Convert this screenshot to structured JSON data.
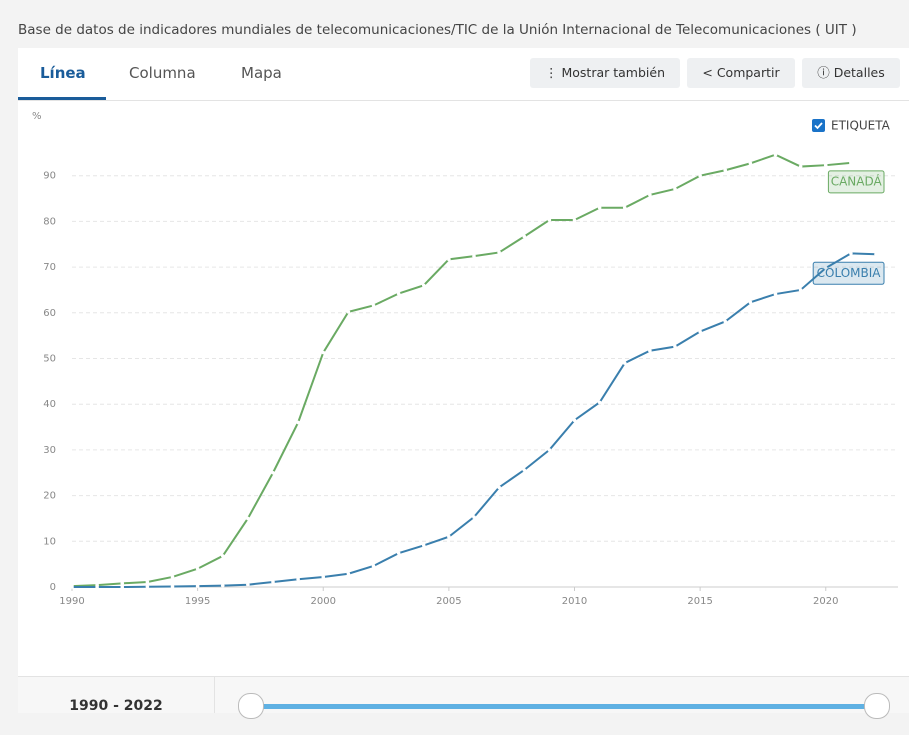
{
  "header": {
    "title": "Base de datos de indicadores mundiales de telecomunicaciones/TIC de la Unión Internacional de Telecomunicaciones ( UIT )"
  },
  "tabs": [
    "Línea",
    "Columna",
    "Mapa"
  ],
  "buttons": [
    "Mostrar también",
    "Compartir",
    "Detalles"
  ],
  "range_label": "1990 - 2022",
  "chart_data": {
    "type": "line",
    "y_label": "%",
    "toggle": "ETIQUETA",
    "x": [
      1990,
      1991,
      1992,
      1993,
      1994,
      1995,
      1996,
      1997,
      1998,
      1999,
      2000,
      2001,
      2002,
      2003,
      2004,
      2005,
      2006,
      2007,
      2008,
      2009,
      2010,
      2011,
      2012,
      2013,
      2014,
      2015,
      2016,
      2017,
      2018,
      2019,
      2020,
      2021,
      2022
    ],
    "series": [
      {
        "name": "CANADÁ",
        "color": "#6aaa63",
        "values": [
          0.2,
          0.4,
          0.8,
          1.1,
          2.2,
          4.0,
          6.8,
          15,
          25,
          36,
          51.3,
          60.2,
          61.6,
          64.2,
          66,
          71.7,
          72.4,
          73.2,
          76.7,
          80.3,
          80.3,
          83,
          83,
          85.8,
          87.1,
          90,
          91.2,
          92.7,
          94.6,
          92,
          92.3,
          92.8,
          null
        ]
      },
      {
        "name": "COLOMBIA",
        "color": "#3a7fad",
        "values": [
          0,
          0,
          0,
          0.05,
          0.1,
          0.2,
          0.3,
          0.5,
          1.1,
          1.7,
          2.2,
          2.9,
          4.6,
          7.4,
          9.1,
          11,
          15.3,
          21.8,
          25.6,
          30,
          36.5,
          40.4,
          49,
          51.7,
          52.6,
          55.9,
          58.1,
          62.3,
          64.1,
          65,
          69.8,
          73,
          72.8
        ]
      }
    ],
    "xlim": [
      1990,
      2022
    ],
    "xticks": [
      1990,
      1995,
      2000,
      2005,
      2010,
      2015,
      2020
    ],
    "ylim": [
      0,
      100
    ],
    "yticks": [
      0,
      10,
      20,
      30,
      40,
      50,
      60,
      70,
      80,
      90
    ],
    "grid": true
  }
}
